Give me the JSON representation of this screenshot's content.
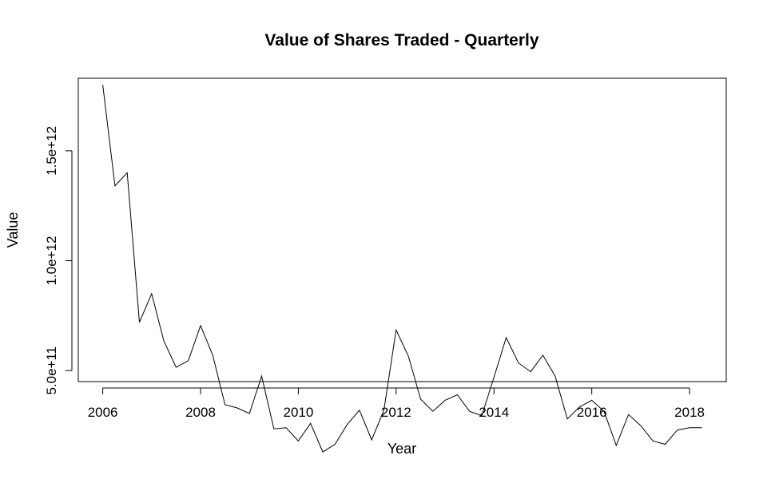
{
  "chart_data": {
    "type": "line",
    "title": "Value of Shares Traded - Quarterly",
    "xlabel": "Year",
    "ylabel": "Value",
    "xlim": [
      2005.5,
      2018.75
    ],
    "ylim": [
      450000000000,
      1830000000000
    ],
    "xticks": [
      2006,
      2008,
      2010,
      2012,
      2014,
      2016,
      2018
    ],
    "xtick_labels": [
      "2006",
      "2008",
      "2010",
      "2012",
      "2014",
      "2016",
      "2018"
    ],
    "yticks": [
      500000000000,
      1000000000000,
      1500000000000
    ],
    "ytick_labels": [
      "5.0e+11",
      "1.0e+12",
      "1.5e+12"
    ],
    "grid": false,
    "series": [
      {
        "name": "Value",
        "x": [
          2006.0,
          2006.25,
          2006.5,
          2006.75,
          2007.0,
          2007.25,
          2007.5,
          2007.75,
          2008.0,
          2008.25,
          2008.5,
          2008.75,
          2009.0,
          2009.25,
          2009.5,
          2009.75,
          2010.0,
          2010.25,
          2010.5,
          2010.75,
          2011.0,
          2011.25,
          2011.5,
          2011.75,
          2012.0,
          2012.25,
          2012.5,
          2012.75,
          2013.0,
          2013.25,
          2013.5,
          2013.75,
          2014.0,
          2014.25,
          2014.5,
          2014.75,
          2015.0,
          2015.25,
          2015.5,
          2015.75,
          2016.0,
          2016.25,
          2016.5,
          2016.75,
          2017.0,
          2017.25,
          2017.5,
          2017.75,
          2018.0,
          2018.25
        ],
        "values": [
          1800000000000,
          1340000000000,
          1400000000000,
          720000000000,
          850000000000,
          635000000000,
          515000000000,
          545000000000,
          705000000000,
          570000000000,
          345000000000,
          330000000000,
          305000000000,
          475000000000,
          235000000000,
          240000000000,
          180000000000,
          260000000000,
          130000000000,
          165000000000,
          255000000000,
          320000000000,
          185000000000,
          320000000000,
          685000000000,
          565000000000,
          370000000000,
          315000000000,
          365000000000,
          390000000000,
          315000000000,
          295000000000,
          470000000000,
          650000000000,
          535000000000,
          495000000000,
          570000000000,
          475000000000,
          280000000000,
          335000000000,
          365000000000,
          315000000000,
          160000000000,
          300000000000,
          250000000000,
          180000000000,
          165000000000,
          230000000000,
          240000000000,
          240000000000
        ]
      }
    ]
  }
}
